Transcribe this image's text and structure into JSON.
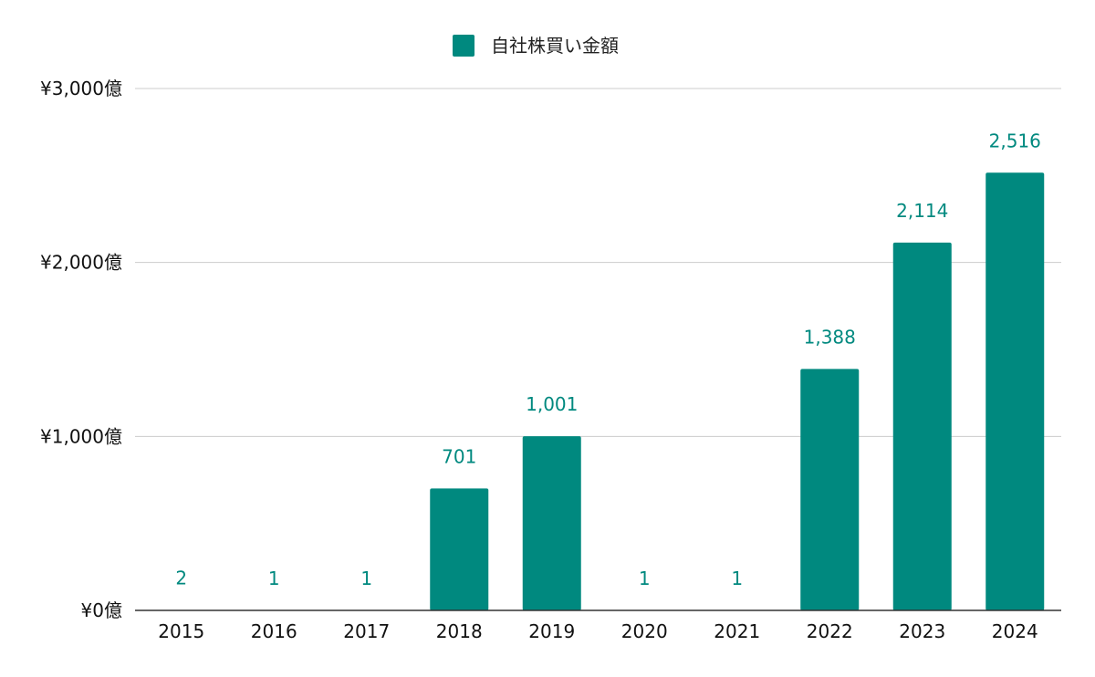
{
  "chart_data": {
    "type": "bar",
    "categories": [
      "2015",
      "2016",
      "2017",
      "2018",
      "2019",
      "2020",
      "2021",
      "2022",
      "2023",
      "2024"
    ],
    "series": [
      {
        "name": "自社株買い金額",
        "values": [
          2,
          1,
          1,
          701,
          1001,
          1,
          1,
          1388,
          2114,
          2516
        ],
        "data_labels": [
          "2",
          "1",
          "1",
          "701",
          "1,001",
          "1",
          "1",
          "1,388",
          "2,114",
          "2,516"
        ],
        "color": "#00897f"
      }
    ],
    "title": "",
    "xlabel": "",
    "ylabel": "",
    "ylim": [
      0,
      3000
    ],
    "yticks": [
      0,
      1000,
      2000,
      3000
    ],
    "ytick_labels": [
      "¥0億",
      "¥1,000億",
      "¥2,000億",
      "¥3,000億"
    ],
    "grid": true,
    "legend_position": "top-center",
    "colors": {
      "bar": "#00897f",
      "data_label": "#00897f",
      "gridline": "#cccccc",
      "axis": "#333333"
    }
  }
}
